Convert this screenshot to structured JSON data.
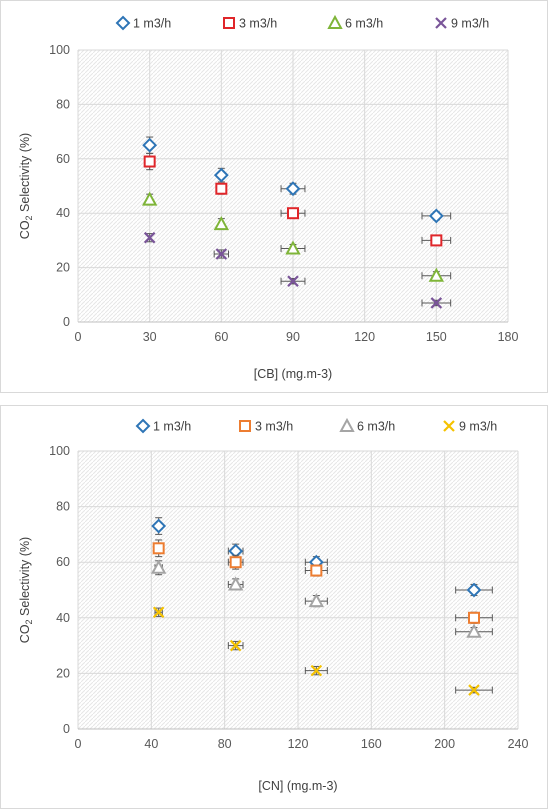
{
  "chart_data": [
    {
      "type": "scatter",
      "xlabel": "[CB] (mg.m-3)",
      "ylabel_prefix": "CO",
      "ylabel_sub": "2",
      "ylabel_suffix": " Selectivity (%)",
      "xlim": [
        0,
        180
      ],
      "ylim": [
        0,
        100
      ],
      "xticks": [
        0,
        30,
        60,
        90,
        120,
        150,
        180
      ],
      "yticks": [
        0,
        20,
        40,
        60,
        80,
        100
      ],
      "grid": true,
      "legend_position": "top",
      "series": [
        {
          "name": "1 m3/h",
          "marker": "diamond",
          "color": "#2e75b6",
          "x": [
            30,
            60,
            90,
            150
          ],
          "y": [
            65,
            54,
            49,
            39
          ],
          "xerr": [
            0,
            0,
            5,
            6
          ],
          "yerr": [
            3,
            2.5,
            2,
            1.5
          ]
        },
        {
          "name": "3 m3/h",
          "marker": "square",
          "color": "#e0262a",
          "x": [
            30,
            60,
            90,
            150
          ],
          "y": [
            59,
            49,
            40,
            30
          ],
          "xerr": [
            0,
            0,
            5,
            6
          ],
          "yerr": [
            3,
            2,
            1.5,
            1.5
          ]
        },
        {
          "name": "6 m3/h",
          "marker": "triangle",
          "color": "#7fb539",
          "x": [
            30,
            60,
            90,
            150
          ],
          "y": [
            45,
            36,
            27,
            17
          ],
          "xerr": [
            0,
            0,
            5,
            6
          ],
          "yerr": [
            2,
            2,
            1.5,
            1.5
          ]
        },
        {
          "name": "9 m3/h",
          "marker": "x",
          "color": "#7a5599",
          "x": [
            30,
            60,
            90,
            150
          ],
          "y": [
            31,
            25,
            15,
            7
          ],
          "xerr": [
            0,
            3,
            5,
            6
          ],
          "yerr": [
            1.5,
            1.5,
            1,
            1
          ]
        }
      ]
    },
    {
      "type": "scatter",
      "xlabel": "[CN] (mg.m-3)",
      "ylabel_prefix": "CO",
      "ylabel_sub": "2",
      "ylabel_suffix": " Selectivity (%)",
      "xlim": [
        0,
        240
      ],
      "ylim": [
        0,
        100
      ],
      "xticks": [
        0,
        40,
        80,
        120,
        160,
        200,
        240
      ],
      "yticks": [
        0,
        20,
        40,
        60,
        80,
        100
      ],
      "grid": true,
      "legend_position": "top",
      "series": [
        {
          "name": "1 m3/h",
          "marker": "diamond",
          "color": "#2e75b6",
          "x": [
            44,
            86,
            130,
            216
          ],
          "y": [
            73,
            64,
            60,
            50
          ],
          "xerr": [
            2,
            4,
            6,
            10
          ],
          "yerr": [
            3,
            2.5,
            2,
            2
          ]
        },
        {
          "name": "3 m3/h",
          "marker": "square",
          "color": "#ed7d31",
          "x": [
            44,
            86,
            130,
            216
          ],
          "y": [
            65,
            60,
            57,
            40
          ],
          "xerr": [
            2,
            4,
            6,
            10
          ],
          "yerr": [
            3,
            2.5,
            2,
            2
          ]
        },
        {
          "name": "6 m3/h",
          "marker": "triangle",
          "color": "#a5a5a5",
          "x": [
            44,
            86,
            130,
            216
          ],
          "y": [
            58,
            52,
            46,
            35
          ],
          "xerr": [
            2,
            4,
            6,
            10
          ],
          "yerr": [
            2.5,
            2,
            2,
            1.5
          ]
        },
        {
          "name": "9 m3/h",
          "marker": "x",
          "color": "#f5c200",
          "x": [
            44,
            86,
            130,
            216
          ],
          "y": [
            42,
            30,
            21,
            14
          ],
          "xerr": [
            2,
            4,
            6,
            10
          ],
          "yerr": [
            1.5,
            1.5,
            1.5,
            1
          ]
        }
      ]
    }
  ]
}
